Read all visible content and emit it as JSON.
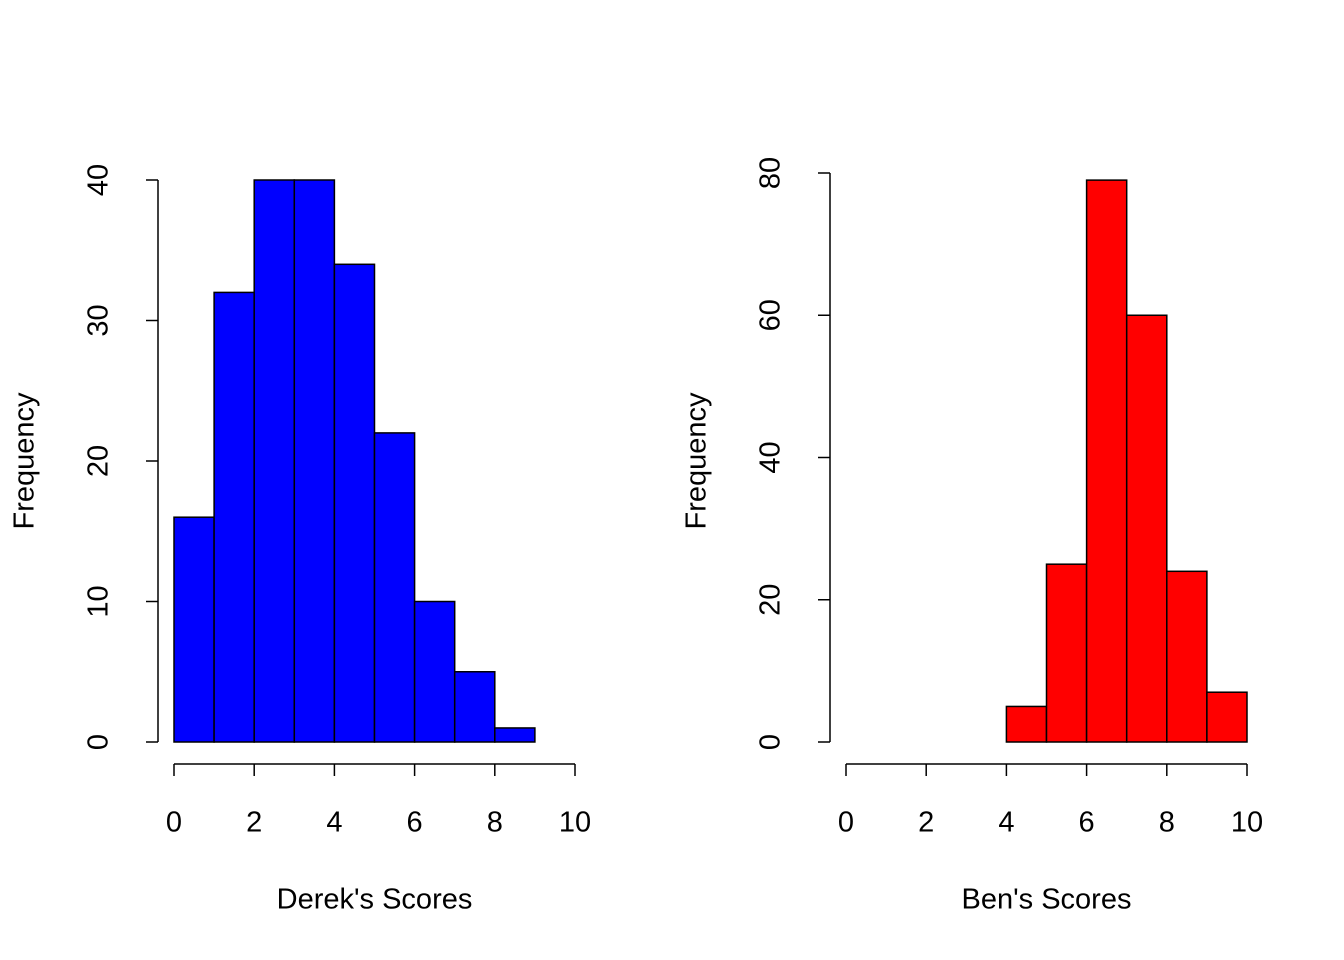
{
  "chart_data": [
    {
      "type": "histogram",
      "xlabel": "Derek's Scores",
      "ylabel": "Frequency",
      "bins": [
        0,
        1,
        2,
        3,
        4,
        5,
        6,
        7,
        8,
        9
      ],
      "counts": [
        16,
        32,
        40,
        40,
        34,
        22,
        10,
        5,
        1
      ],
      "color": "#0000ff",
      "xlim": [
        0,
        10
      ],
      "xticks": [
        0,
        2,
        4,
        6,
        8,
        10
      ],
      "ylim": [
        0,
        40
      ],
      "yticks": [
        0,
        10,
        20,
        30,
        40
      ]
    },
    {
      "type": "histogram",
      "xlabel": "Ben's Scores",
      "ylabel": "Frequency",
      "bins": [
        4,
        5,
        6,
        7,
        8,
        9,
        10
      ],
      "counts": [
        5,
        25,
        79,
        60,
        24,
        7
      ],
      "color": "#ff0000",
      "xlim": [
        0,
        10
      ],
      "xticks": [
        0,
        2,
        4,
        6,
        8,
        10
      ],
      "ylim": [
        0,
        80
      ],
      "yticks": [
        0,
        20,
        40,
        60,
        80
      ]
    }
  ]
}
